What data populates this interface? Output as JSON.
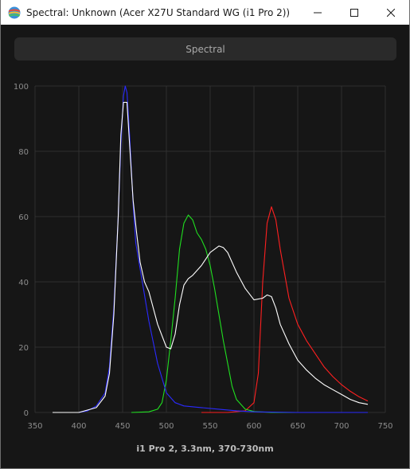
{
  "window": {
    "title": "Spectral: Unknown (Acer X27U Standard WG (i1 Pro 2))",
    "controls": [
      "minimize",
      "maximize",
      "close"
    ]
  },
  "header": {
    "label": "Spectral"
  },
  "caption": "i1 Pro 2, 3.3nm, 370-730nm",
  "colors": {
    "background": "#161616",
    "grid": "#2f2f2f",
    "axis_text": "#8c8c8c",
    "red": "#ff2020",
    "green": "#20e020",
    "blue": "#2a2aff",
    "white": "#ffffff"
  },
  "chart_data": {
    "type": "line",
    "title": "",
    "xlabel": "",
    "ylabel": "",
    "xlim": [
      350,
      750
    ],
    "ylim": [
      0,
      100
    ],
    "xticks": [
      350,
      400,
      450,
      500,
      550,
      600,
      650,
      700,
      750
    ],
    "yticks": [
      0,
      20,
      40,
      60,
      80,
      100
    ],
    "grid": true,
    "series": [
      {
        "color": "#ff2020",
        "x": [
          540,
          570,
          590,
          600,
          605,
          610,
          615,
          620,
          625,
          630,
          640,
          650,
          660,
          670,
          680,
          690,
          700,
          710,
          720,
          730
        ],
        "y": [
          0,
          0,
          0.5,
          3,
          12,
          40,
          58,
          63,
          59,
          50,
          35,
          27,
          22,
          18,
          14,
          11,
          8.5,
          6.5,
          4.8,
          3.5
        ]
      },
      {
        "color": "#20e020",
        "x": [
          460,
          480,
          490,
          495,
          500,
          505,
          510,
          515,
          520,
          525,
          530,
          535,
          540,
          545,
          550,
          555,
          560,
          565,
          570,
          575,
          580,
          590,
          600,
          620,
          730
        ],
        "y": [
          0,
          0.2,
          1,
          3,
          10,
          22,
          35,
          50,
          58,
          60.5,
          59,
          55,
          53,
          50,
          45,
          38,
          30,
          22,
          15,
          8,
          4,
          1,
          0.3,
          0,
          0
        ]
      },
      {
        "color": "#2a2aff",
        "x": [
          370,
          400,
          410,
          420,
          430,
          435,
          440,
          445,
          448,
          451,
          453,
          455,
          458,
          462,
          465,
          470,
          475,
          480,
          490,
          500,
          510,
          520,
          540,
          560,
          580,
          600,
          650,
          730
        ],
        "y": [
          0,
          0,
          0.5,
          2,
          6,
          14,
          32,
          60,
          82,
          97,
          100,
          98,
          85,
          64,
          52,
          44,
          36,
          28,
          15,
          6,
          3,
          2,
          1.5,
          1,
          0.5,
          0.2,
          0,
          0
        ]
      },
      {
        "color": "#ffffff",
        "x": [
          370,
          400,
          420,
          430,
          435,
          440,
          445,
          448,
          451,
          455,
          458,
          462,
          466,
          470,
          475,
          480,
          490,
          500,
          505,
          510,
          515,
          520,
          525,
          530,
          540,
          550,
          560,
          565,
          570,
          580,
          590,
          600,
          610,
          615,
          620,
          625,
          630,
          640,
          650,
          660,
          670,
          680,
          690,
          700,
          710,
          720,
          730
        ],
        "y": [
          0,
          0,
          1.5,
          5,
          12,
          30,
          60,
          85,
          95,
          95,
          82,
          65,
          55,
          46,
          40,
          37,
          27,
          20,
          19.5,
          24,
          33,
          39,
          41,
          42,
          45,
          49,
          51,
          50.5,
          49,
          43,
          38,
          34.5,
          35,
          36,
          35.5,
          32,
          27,
          21,
          16,
          13,
          10.5,
          8.5,
          7,
          5.5,
          4,
          3,
          2.5
        ]
      }
    ]
  }
}
